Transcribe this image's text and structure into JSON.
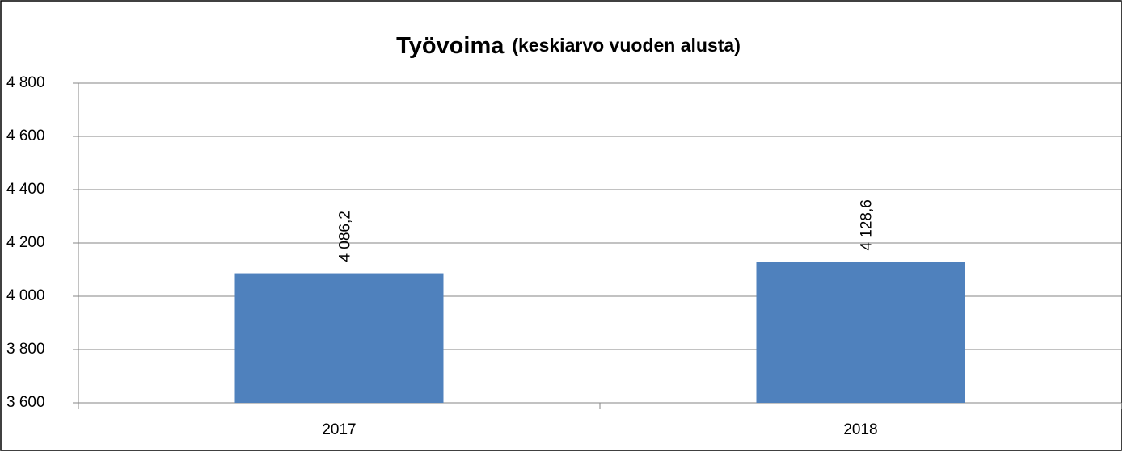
{
  "chart_data": {
    "type": "bar",
    "title": "Työvoima",
    "subtitle": "(keskiarvo vuoden alusta)",
    "categories": [
      "2017",
      "2018"
    ],
    "values": [
      4086.2,
      4128.6
    ],
    "value_labels": [
      "4 086,2",
      "4 128,6"
    ],
    "color": "#4f81bd",
    "ylim": [
      3600,
      4800
    ],
    "yticks": [
      {
        "value": 3600,
        "label": "3 600"
      },
      {
        "value": 3800,
        "label": "3 800"
      },
      {
        "value": 4000,
        "label": "4 000"
      },
      {
        "value": 4200,
        "label": "4 200"
      },
      {
        "value": 4400,
        "label": "4 400"
      },
      {
        "value": 4600,
        "label": "4 600"
      },
      {
        "value": 4800,
        "label": "4 800"
      }
    ],
    "grid": true
  }
}
